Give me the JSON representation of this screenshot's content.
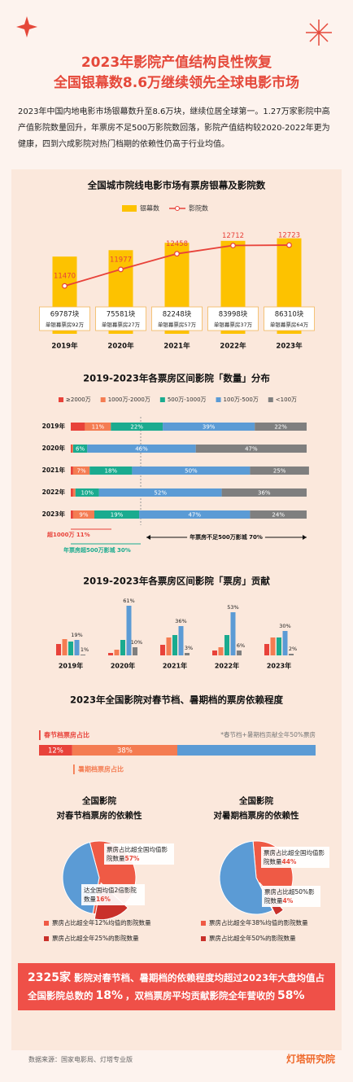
{
  "header": {
    "title_lines": [
      "2023年影院产值结构良性恢复",
      "全国银幕数8.6万继续领先全球电影市场"
    ]
  },
  "intro": "2023年中国内地电影市场银幕数升至8.6万块，继续位居全球第一。1.27万家影院中高产值影院数量回升，年票房不足500万影院数回落，影院产值结构较2020-2022年更为健康，四到六成影院对热门档期的依赖性仍高于行业均值。",
  "chart_data": [
    {
      "type": "combo",
      "title": "全国城市院线电影市场有票房银幕及影院数",
      "categories": [
        "2019年",
        "2020年",
        "2021年",
        "2022年",
        "2023年"
      ],
      "series": [
        {
          "name": "银幕数",
          "color": "#fdc200",
          "values": [
            69787,
            75581,
            82248,
            83998,
            86310
          ],
          "value_labels": [
            "69787块",
            "75581块",
            "82248块",
            "83998块",
            "86310块"
          ]
        },
        {
          "name": "影院数",
          "color": "#e8423a",
          "axis": "y2",
          "values": [
            11470,
            11977,
            12458,
            12712,
            12723
          ]
        }
      ],
      "ylim": [
        0,
        103000
      ],
      "y2lim": [
        10000,
        13500
      ],
      "annotations": [
        "单银幕票房92万",
        "单银幕票房27万",
        "单银幕票房57万",
        "单银幕票房37万",
        "单银幕票房64万"
      ]
    },
    {
      "type": "stacked",
      "title": "2019-2023年各票房区间影院「数量」分布",
      "categories": [
        "2019年",
        "2020年",
        "2021年",
        "2022年",
        "2023年"
      ],
      "series": [
        {
          "name": "≥2000万",
          "color": "#e8423a",
          "values": [
            6,
            0.5,
            1,
            1,
            1
          ],
          "value_labels": [
            null,
            null,
            null,
            null,
            null
          ]
        },
        {
          "name": "1000万-2000万",
          "color": "#f47c52",
          "values": [
            11,
            0.5,
            7,
            1,
            9
          ],
          "value_labels": [
            "11%",
            null,
            "7%",
            null,
            "9%"
          ]
        },
        {
          "name": "500万-1000万",
          "color": "#1aab8f",
          "values": [
            22,
            6,
            18,
            10,
            19
          ],
          "value_labels": [
            "22%",
            "6%",
            "18%",
            "10%",
            "19%"
          ]
        },
        {
          "name": "100万-500万",
          "color": "#5b9bd5",
          "values": [
            39,
            46,
            50,
            52,
            47
          ],
          "value_labels": [
            "39%",
            "46%",
            "50%",
            "52%",
            "47%"
          ]
        },
        {
          "name": "<100万",
          "color": "#7f7f7f",
          "values": [
            22,
            47,
            25,
            36,
            24
          ],
          "value_labels": [
            "22%",
            "47%",
            "25%",
            "36%",
            "24%"
          ]
        }
      ],
      "xlim": [
        0,
        100
      ],
      "annotations": [
        "超1000万 11%",
        "年票房超500万影城 30%",
        "年票房不足500万影城 70%"
      ]
    },
    {
      "type": "bar",
      "title": "2019-2023年各票房区间影院「票房」贡献",
      "categories": [
        "2019年",
        "2020年",
        "2021年",
        "2022年",
        "2023年"
      ],
      "series": [
        {
          "color": "#e8423a",
          "values": [
            14,
            3,
            13,
            6,
            14
          ]
        },
        {
          "color": "#f47c52",
          "values": [
            20,
            7,
            22,
            10,
            22
          ]
        },
        {
          "color": "#1aab8f",
          "values": [
            17,
            19,
            25,
            25,
            22
          ]
        },
        {
          "color": "#5b9bd5",
          "values": [
            19,
            61,
            36,
            53,
            30
          ],
          "value_labels": [
            "19%",
            "61%",
            "36%",
            "53%",
            "30%"
          ]
        },
        {
          "color": "#7f7f7f",
          "values": [
            1,
            10,
            3,
            6,
            2
          ],
          "value_labels": [
            "1%",
            "10%",
            "3%",
            "6%",
            "2%"
          ]
        }
      ],
      "ylim": [
        0,
        70
      ]
    },
    {
      "type": "stacked",
      "title": "2023年全国影院对春节档、暑期档的票房依赖程度",
      "categories": [
        null
      ],
      "series": [
        {
          "name": "春节档票房占比",
          "color": "#e8423a",
          "values": [
            12
          ],
          "value_labels": [
            "12%"
          ]
        },
        {
          "name": "暑期档票房占比",
          "color": "#f47c52",
          "values": [
            38
          ],
          "value_labels": [
            "38%"
          ]
        },
        {
          "color": "#5b9bd5",
          "values": [
            50
          ]
        }
      ],
      "xlim": [
        0,
        100
      ],
      "annotations": [
        "*春节档+暑期档贡献全年50%票房"
      ]
    },
    {
      "type": "pie",
      "title": "全国影院",
      "subtitle": "对春节档票房的依赖性",
      "categories": [
        "票房占比超全国均值影院数量",
        "达全国均值2倍影院数量",
        null
      ],
      "values": [
        57,
        16,
        43
      ],
      "value_labels": [
        "57%",
        "16%",
        null
      ],
      "colors": [
        "#ef5a45",
        "#c9302a",
        "#5b9bd5"
      ],
      "legend": [
        "票房占比超全年12%均值的影院数量",
        "票房占比超全年25%的影院数量"
      ]
    },
    {
      "type": "pie",
      "title": "全国影院",
      "subtitle": "对暑期档票房的依赖性",
      "categories": [
        "票房占比超全国均值影院数量",
        "票房占比超50%影院数量",
        null
      ],
      "values": [
        44,
        4,
        56
      ],
      "value_labels": [
        "44%",
        "4%",
        null
      ],
      "colors": [
        "#ef5a45",
        "#c9302a",
        "#5b9bd5"
      ],
      "legend": [
        "票房占比超全年38%均值的影院数量",
        "票房占比超全年50%的影院数量"
      ]
    }
  ],
  "summary": {
    "parts": [
      "2325家",
      "影院对春节档、暑期档的依赖程度均超过2023年大盘均值占全国影院总数的",
      "18%",
      "，双档票房平均贡献影院全年营收的",
      "58%"
    ]
  },
  "footer": {
    "source": "数据来源：国家电影局、灯塔专业版",
    "logo": "灯塔研究院"
  }
}
